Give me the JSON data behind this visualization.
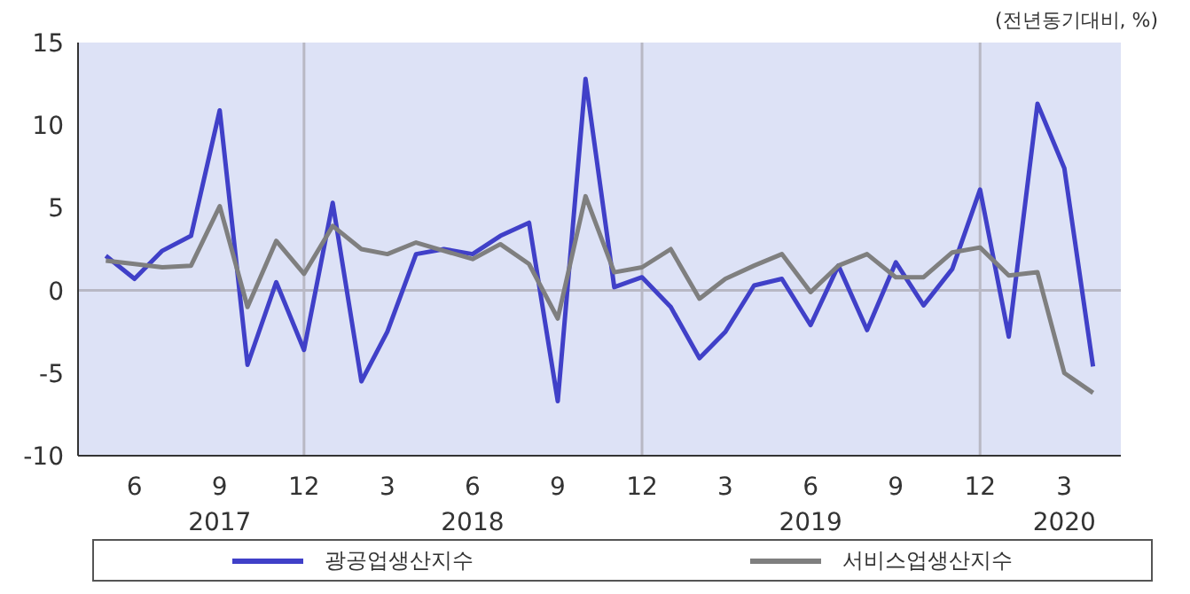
{
  "chart_data": {
    "type": "line",
    "annotations": [
      "(전년동기대비,  %)"
    ],
    "x": [
      "2017-05",
      "2017-06",
      "2017-07",
      "2017-08",
      "2017-09",
      "2017-10",
      "2017-11",
      "2017-12",
      "2018-01",
      "2018-02",
      "2018-03",
      "2018-04",
      "2018-05",
      "2018-06",
      "2018-07",
      "2018-08",
      "2018-09",
      "2018-10",
      "2018-11",
      "2018-12",
      "2019-01",
      "2019-02",
      "2019-03",
      "2019-04",
      "2019-05",
      "2019-06",
      "2019-07",
      "2019-08",
      "2019-09",
      "2019-10",
      "2019-11",
      "2019-12",
      "2020-01",
      "2020-02",
      "2020-03",
      "2020-04"
    ],
    "series": [
      {
        "name": "광공업생산지수",
        "color": "#4040c8",
        "values": [
          2.1,
          0.7,
          2.4,
          3.3,
          10.9,
          -4.5,
          0.5,
          -3.6,
          5.3,
          -5.5,
          -2.5,
          2.2,
          2.5,
          2.2,
          3.3,
          4.1,
          -6.7,
          12.8,
          0.2,
          0.8,
          -1.0,
          -4.1,
          -2.5,
          0.3,
          0.7,
          -2.1,
          1.5,
          -2.4,
          1.7,
          -0.9,
          1.3,
          6.1,
          -2.8,
          11.3,
          7.4,
          -4.6
        ]
      },
      {
        "name": "서비스업생산지수",
        "color": "#7f7f7f",
        "values": [
          1.8,
          1.6,
          1.4,
          1.5,
          5.1,
          -1.0,
          3.0,
          1.0,
          3.9,
          2.5,
          2.2,
          2.9,
          2.4,
          1.9,
          2.8,
          1.6,
          -1.7,
          5.7,
          1.1,
          1.4,
          2.5,
          -0.5,
          0.7,
          1.5,
          2.2,
          -0.1,
          1.5,
          2.2,
          0.8,
          0.8,
          2.3,
          2.6,
          0.9,
          1.1,
          -5.0,
          -6.2
        ]
      }
    ],
    "xlim": [
      "2017-04",
      "2020-05"
    ],
    "xticks": [
      {
        "value": "2017-06",
        "label": "6"
      },
      {
        "value": "2017-09",
        "label": "9\n2017"
      },
      {
        "value": "2017-12",
        "label": "12"
      },
      {
        "value": "2018-03",
        "label": "3"
      },
      {
        "value": "2018-06",
        "label": "6\n2018"
      },
      {
        "value": "2018-09",
        "label": "9"
      },
      {
        "value": "2018-12",
        "label": "12"
      },
      {
        "value": "2019-03",
        "label": "3"
      },
      {
        "value": "2019-06",
        "label": "6\n2019"
      },
      {
        "value": "2019-09",
        "label": "9"
      },
      {
        "value": "2019-12",
        "label": "12"
      },
      {
        "value": "2020-03",
        "label": "3\n2020"
      }
    ],
    "ylim": [
      -10,
      15
    ],
    "yticks": [
      -10,
      -5,
      0,
      5,
      10,
      15
    ],
    "ref_lines": [
      {
        "axis": "y",
        "value": 0,
        "color": "#b8b8c4"
      },
      {
        "axis": "x",
        "value": "2017-12",
        "color": "#b8b8c4"
      },
      {
        "axis": "x",
        "value": "2018-12",
        "color": "#b8b8c4"
      },
      {
        "axis": "x",
        "value": "2019-12",
        "color": "#b8b8c4"
      }
    ],
    "legend": "bottom",
    "marker": "none",
    "line_style": "solid"
  }
}
